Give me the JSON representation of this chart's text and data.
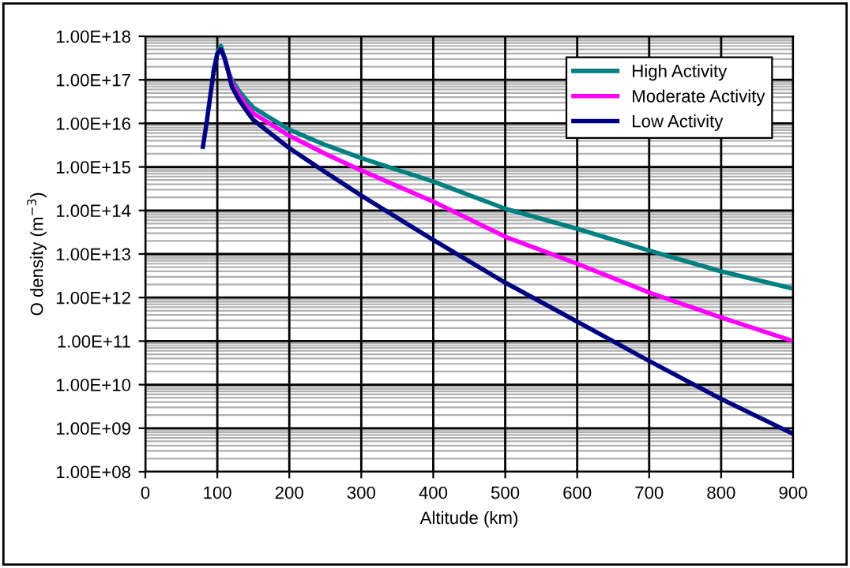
{
  "chart_data": {
    "type": "line",
    "xlabel": "Altitude (km)",
    "ylabel": "O density (m$^{−3}$)",
    "log": "y",
    "grid": true,
    "legend": "top right",
    "line_style": "solid",
    "marker": "none",
    "x": [
      80,
      85,
      90,
      95,
      100,
      105,
      110,
      115,
      120,
      130,
      140,
      150,
      200,
      250,
      300,
      400,
      500,
      600,
      700,
      800,
      900
    ],
    "xlim": [
      0,
      900
    ],
    "xticks": [
      0,
      100,
      200,
      300,
      400,
      500,
      600,
      700,
      800,
      900
    ],
    "ylim": [
      100000000.0,
      1e+18
    ],
    "yticks": [
      {
        "value": 100000000.0,
        "label": "1.00E+08"
      },
      {
        "value": 1000000000.0,
        "label": "1.00E+09"
      },
      {
        "value": 10000000000.0,
        "label": "1.00E+10"
      },
      {
        "value": 100000000000.0,
        "label": "1.00E+11"
      },
      {
        "value": 1000000000000.0,
        "label": "1.00E+12"
      },
      {
        "value": 10000000000000.0,
        "label": "1.00E+13"
      },
      {
        "value": 100000000000000.0,
        "label": "1.00E+14"
      },
      {
        "value": 1000000000000000.0,
        "label": "1.00E+15"
      },
      {
        "value": 1e+16,
        "label": "1.00E+16"
      },
      {
        "value": 1e+17,
        "label": "1.00E+17"
      },
      {
        "value": 1e+18,
        "label": "1.00E+18"
      }
    ],
    "series": [
      {
        "name": "High Activity",
        "color": "#008080",
        "values": [
          null,
          null,
          null,
          1.6e+17,
          4e+17,
          6e+17,
          3.2e+17,
          1.6e+17,
          1e+17,
          5.6e+16,
          3.5e+16,
          2.3e+16,
          7200000000000000.0,
          3200000000000000.0,
          1600000000000000.0,
          460000000000000.0,
          110000000000000.0,
          38000000000000.0,
          12000000000000.0,
          4000000000000.0,
          1600000000000.0
        ]
      },
      {
        "name": "Moderate Activity",
        "color": "#ff00ff",
        "values": [
          null,
          null,
          null,
          null,
          null,
          null,
          3.2e+17,
          1.6e+17,
          8.9e+16,
          4.5e+16,
          2.6e+16,
          1.7e+16,
          5200000000000000.0,
          2000000000000000.0,
          830000000000000.0,
          160000000000000.0,
          25000000000000.0,
          6000000000000.0,
          1300000000000.0,
          350000000000.0,
          100000000000.0
        ]
      },
      {
        "name": "Low Activity",
        "color": "#000080",
        "values": [
          2900000000000000.0,
          1e+16,
          4e+16,
          1.6e+17,
          4e+17,
          5e+17,
          3.2e+17,
          1.6e+17,
          7.1e+16,
          3.5e+16,
          2e+16,
          1.2e+16,
          2700000000000000.0,
          760000000000000.0,
          220000000000000.0,
          21000000000000.0,
          2200000000000.0,
          280000000000.0,
          35000000000.0,
          4700000000.0,
          740000000.0
        ]
      }
    ]
  }
}
